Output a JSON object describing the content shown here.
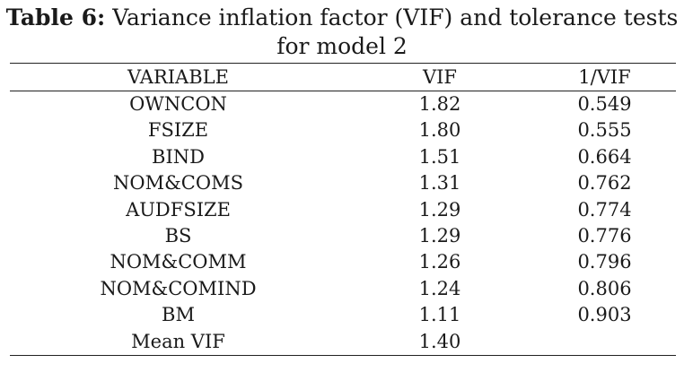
{
  "caption": {
    "label": "Table 6:",
    "text_line1": " Variance inflation factor (VIF) and tolerance tests",
    "text_line2": "for model 2"
  },
  "table": {
    "headers": [
      "VARIABLE",
      "VIF",
      "1/VIF"
    ],
    "rows": [
      {
        "variable": "OWNCON",
        "vif": "1.82",
        "inv_vif": "0.549"
      },
      {
        "variable": "FSIZE",
        "vif": "1.80",
        "inv_vif": "0.555"
      },
      {
        "variable": "BIND",
        "vif": "1.51",
        "inv_vif": "0.664"
      },
      {
        "variable": "NOM&COMS",
        "vif": "1.31",
        "inv_vif": "0.762"
      },
      {
        "variable": "AUDFSIZE",
        "vif": "1.29",
        "inv_vif": "0.774"
      },
      {
        "variable": "BS",
        "vif": "1.29",
        "inv_vif": "0.776"
      },
      {
        "variable": "NOM&COMM",
        "vif": "1.26",
        "inv_vif": "0.796"
      },
      {
        "variable": "NOM&COMIND",
        "vif": "1.24",
        "inv_vif": "0.806"
      },
      {
        "variable": "BM",
        "vif": "1.11",
        "inv_vif": "0.903"
      },
      {
        "variable": "Mean VIF",
        "vif": "1.40",
        "inv_vif": ""
      }
    ]
  }
}
